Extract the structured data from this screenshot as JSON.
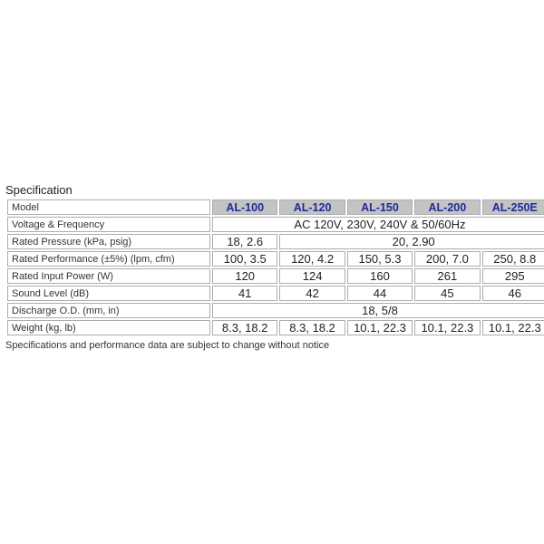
{
  "page": {
    "title": "Specification",
    "footnote": "Specifications and performance data are subject to change without notice"
  },
  "colors": {
    "header_bg": "#c3c3c3",
    "stripe_bg": "#e4e4e4",
    "model_text": "#1f2b9b",
    "border_color": "#adadad"
  },
  "table": {
    "label_column_header": "Model",
    "models": [
      "AL-100",
      "AL-120",
      "AL-150",
      "AL-200",
      "AL-250E"
    ],
    "rows": [
      {
        "label": "Model",
        "kind": "model-header",
        "striped": true,
        "cells": [
          {
            "text": "AL-100",
            "span": 1
          },
          {
            "text": "AL-120",
            "span": 1
          },
          {
            "text": "AL-150",
            "span": 1
          },
          {
            "text": "AL-200",
            "span": 1
          },
          {
            "text": "AL-250E",
            "span": 1
          }
        ]
      },
      {
        "label": "Voltage & Frequency",
        "kind": "value",
        "striped": false,
        "cells": [
          {
            "text": "AC 120V, 230V, 240V & 50/60Hz",
            "span": 5
          }
        ]
      },
      {
        "label": "Rated Pressure (kPa, psig)",
        "kind": "value",
        "striped": true,
        "cells": [
          {
            "text": "18, 2.6",
            "span": 1
          },
          {
            "text": "20, 2.90",
            "span": 4
          }
        ]
      },
      {
        "label": "Rated Performance (±5%) (lpm, cfm)",
        "kind": "value",
        "striped": false,
        "cells": [
          {
            "text": "100, 3.5",
            "span": 1
          },
          {
            "text": "120, 4.2",
            "span": 1
          },
          {
            "text": "150, 5.3",
            "span": 1
          },
          {
            "text": "200, 7.0",
            "span": 1
          },
          {
            "text": "250, 8.8",
            "span": 1
          }
        ]
      },
      {
        "label": "Rated Input Power (W)",
        "kind": "value",
        "striped": true,
        "cells": [
          {
            "text": "120",
            "span": 1
          },
          {
            "text": "124",
            "span": 1
          },
          {
            "text": "160",
            "span": 1
          },
          {
            "text": "261",
            "span": 1
          },
          {
            "text": "295",
            "span": 1
          }
        ]
      },
      {
        "label": "Sound Level (dB)",
        "kind": "value",
        "striped": false,
        "cells": [
          {
            "text": "41",
            "span": 1
          },
          {
            "text": "42",
            "span": 1
          },
          {
            "text": "44",
            "span": 1
          },
          {
            "text": "45",
            "span": 1
          },
          {
            "text": "46",
            "span": 1
          }
        ]
      },
      {
        "label": "Discharge O.D. (mm, in)",
        "kind": "value",
        "striped": true,
        "cells": [
          {
            "text": "18, 5/8",
            "span": 5
          }
        ]
      },
      {
        "label": "Weight (kg, lb)",
        "kind": "value",
        "striped": false,
        "cells": [
          {
            "text": "8.3, 18.2",
            "span": 1
          },
          {
            "text": "8.3, 18.2",
            "span": 1
          },
          {
            "text": "10.1, 22.3",
            "span": 1
          },
          {
            "text": "10.1, 22.3",
            "span": 1
          },
          {
            "text": "10.1, 22.3",
            "span": 1
          }
        ]
      }
    ]
  }
}
